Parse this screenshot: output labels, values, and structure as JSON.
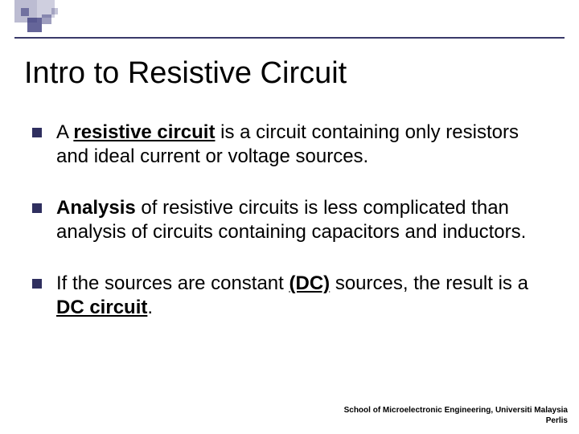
{
  "title": "Intro to Resistive Circuit",
  "bullets": [
    {
      "parts": [
        {
          "t": "A ",
          "b": false,
          "u": false
        },
        {
          "t": "resistive circuit",
          "b": true,
          "u": true
        },
        {
          "t": " is a circuit containing only resistors and ideal current or voltage sources.",
          "b": false,
          "u": false
        }
      ]
    },
    {
      "parts": [
        {
          "t": "Analysis",
          "b": true,
          "u": false
        },
        {
          "t": " of resistive circuits is less complicated than analysis of circuits containing capacitors and inductors.",
          "b": false,
          "u": false
        }
      ]
    },
    {
      "parts": [
        {
          "t": "If the sources are constant ",
          "b": false,
          "u": false
        },
        {
          "t": "(DC)",
          "b": true,
          "u": true
        },
        {
          "t": " sources, the result is a ",
          "b": false,
          "u": false
        },
        {
          "t": "DC circuit",
          "b": true,
          "u": true
        },
        {
          "t": ".",
          "b": false,
          "u": false
        }
      ]
    }
  ],
  "footer_line1": "School of Microelectronic Engineering,  Universiti Malaysia",
  "footer_line2": "Perlis",
  "colors": {
    "bullet": "#2f2f5f",
    "line": "#3a3a6a",
    "decor": "#3f3f7f"
  }
}
